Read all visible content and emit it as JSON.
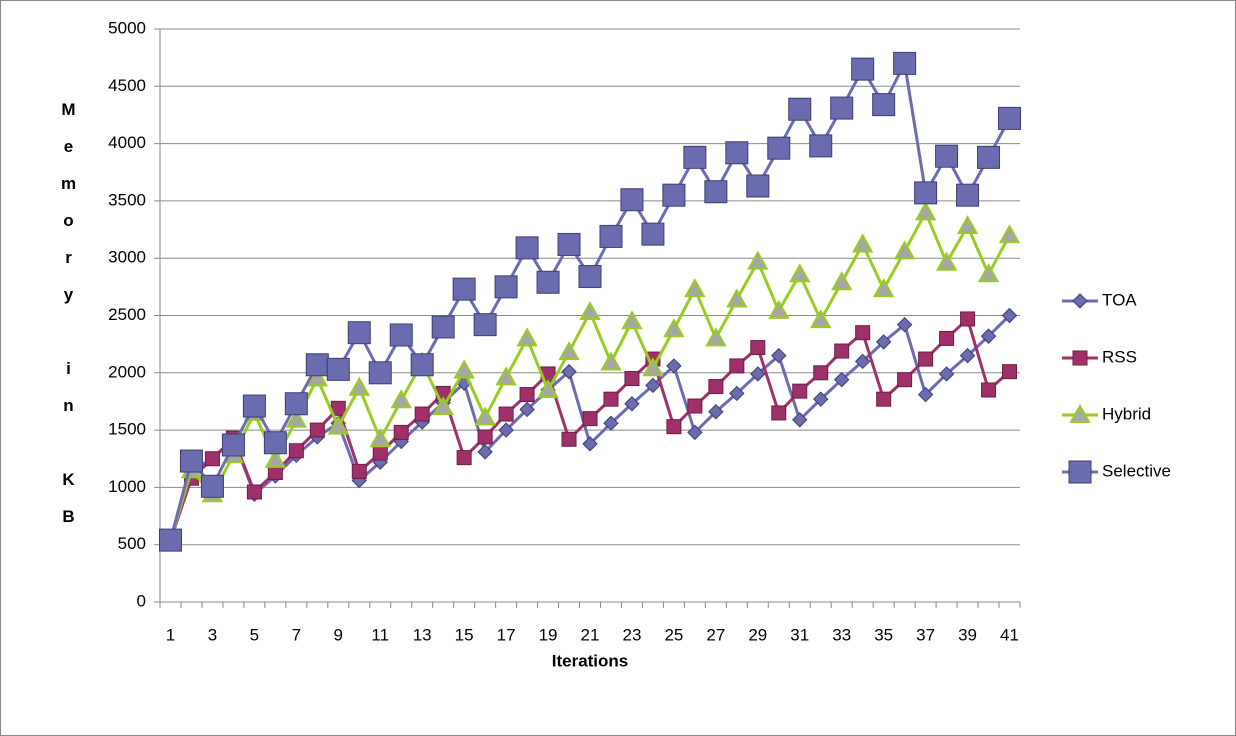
{
  "chart_data": {
    "type": "line",
    "x_label": "Iterations",
    "y_label": "Memory in KB",
    "categories": [
      "1",
      null,
      "3",
      null,
      "5",
      null,
      "7",
      null,
      "9",
      null,
      "11",
      null,
      "13",
      null,
      "15",
      null,
      "17",
      null,
      "19",
      null,
      "21",
      null,
      "23",
      null,
      "25",
      null,
      "27",
      null,
      "29",
      null,
      "31",
      null,
      "33",
      null,
      "35",
      null,
      "37",
      null,
      "39",
      null,
      "41"
    ],
    "ylim": [
      0,
      5000
    ],
    "yticks": [
      0,
      500,
      1000,
      1500,
      2000,
      2500,
      3000,
      3500,
      4000,
      4500,
      5000
    ],
    "grid": true,
    "legend": "right",
    "series": [
      {
        "name": "TOA",
        "color": "#6b6bb0",
        "marker": "diamond",
        "values": [
          540,
          1150,
          1250,
          1420,
          940,
          1100,
          1280,
          1440,
          1560,
          1060,
          1220,
          1400,
          1570,
          1740,
          1910,
          1310,
          1500,
          1680,
          1850,
          2010,
          1380,
          1560,
          1730,
          1890,
          2060,
          1480,
          1660,
          1820,
          1990,
          2150,
          1590,
          1770,
          1940,
          2100,
          2270,
          2420,
          1810,
          1990,
          2150,
          2320,
          2500
        ]
      },
      {
        "name": "RSS",
        "color": "#a0306a",
        "marker": "square",
        "values": [
          540,
          1080,
          1250,
          1430,
          960,
          1130,
          1320,
          1500,
          1690,
          1140,
          1300,
          1480,
          1640,
          1820,
          1260,
          1440,
          1640,
          1810,
          1990,
          1420,
          1600,
          1770,
          1950,
          2120,
          1530,
          1710,
          1880,
          2060,
          2220,
          1650,
          1840,
          2000,
          2190,
          2350,
          1770,
          1940,
          2120,
          2300,
          2470,
          1850,
          2010
        ]
      },
      {
        "name": "Hybrid",
        "color": "#99cc22",
        "marker": "triangle",
        "values": [
          540,
          1150,
          940,
          1280,
          1650,
          1240,
          1590,
          1950,
          1530,
          1870,
          1420,
          1760,
          2090,
          1700,
          2020,
          1610,
          1960,
          2300,
          1850,
          2180,
          2530,
          2090,
          2450,
          2040,
          2380,
          2730,
          2300,
          2640,
          2970,
          2540,
          2860,
          2460,
          2790,
          3120,
          2730,
          3060,
          3400,
          2960,
          3280,
          2860,
          3200
        ]
      },
      {
        "name": "Selective",
        "color": "#6b6bb0",
        "marker": "bigsquare",
        "values": [
          540,
          1230,
          1010,
          1370,
          1710,
          1390,
          1730,
          2070,
          2030,
          2350,
          2000,
          2330,
          2070,
          2400,
          2730,
          2420,
          2750,
          3090,
          2790,
          3120,
          2840,
          3190,
          3510,
          3210,
          3550,
          3880,
          3580,
          3920,
          3630,
          3960,
          4300,
          3980,
          4310,
          4650,
          4340,
          4700,
          3570,
          3890,
          3550,
          3880,
          4220
        ]
      }
    ]
  }
}
